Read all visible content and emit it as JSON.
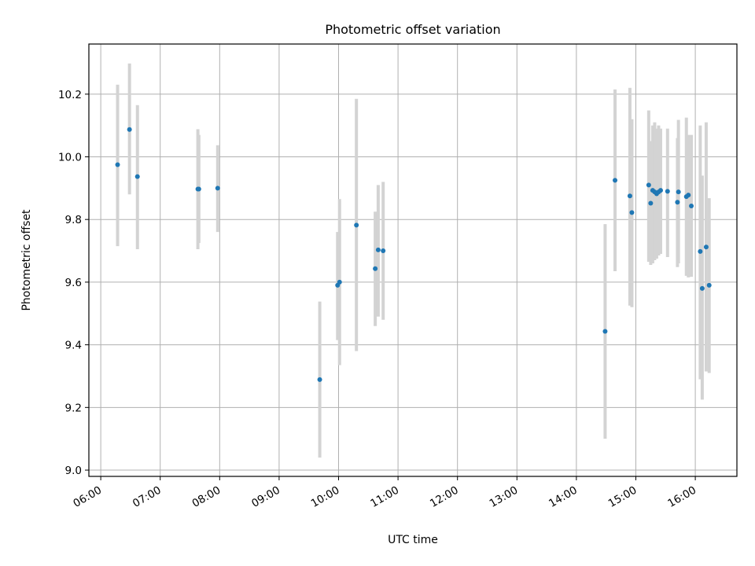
{
  "chart_data": {
    "type": "scatter",
    "title": "Photometric offset variation",
    "xlabel": "UTC time",
    "ylabel": "Photometric offset",
    "xlim": [
      "05:48",
      "16:42"
    ],
    "ylim": [
      8.98,
      10.36
    ],
    "x_ticks": [
      "06:00",
      "07:00",
      "08:00",
      "09:00",
      "10:00",
      "11:00",
      "12:00",
      "13:00",
      "14:00",
      "15:00",
      "16:00"
    ],
    "y_ticks": [
      9.0,
      9.2,
      9.4,
      9.6,
      9.8,
      10.0,
      10.2
    ],
    "grid": true,
    "colors": {
      "points": "#1f77b4",
      "error_bars": "#d3d3d3",
      "grid": "#b0b0b0"
    },
    "series": [
      {
        "points": [
          {
            "x": "06:17",
            "y": 9.975,
            "low": 9.715,
            "high": 10.23
          },
          {
            "x": "06:29",
            "y": 10.087,
            "low": 9.88,
            "high": 10.298
          },
          {
            "x": "06:37",
            "y": 9.937,
            "low": 9.705,
            "high": 10.165
          },
          {
            "x": "07:38",
            "y": 9.897,
            "low": 9.705,
            "high": 10.088
          },
          {
            "x": "07:39",
            "y": 9.897,
            "low": 9.725,
            "high": 10.07
          },
          {
            "x": "07:58",
            "y": 9.9,
            "low": 9.76,
            "high": 10.037
          },
          {
            "x": "09:41",
            "y": 9.289,
            "low": 9.04,
            "high": 9.538
          },
          {
            "x": "09:59",
            "y": 9.59,
            "low": 9.415,
            "high": 9.76
          },
          {
            "x": "10:01",
            "y": 9.6,
            "low": 9.335,
            "high": 9.865
          },
          {
            "x": "10:18",
            "y": 9.782,
            "low": 9.38,
            "high": 10.185
          },
          {
            "x": "10:37",
            "y": 9.643,
            "low": 9.46,
            "high": 9.825
          },
          {
            "x": "10:40",
            "y": 9.703,
            "low": 9.49,
            "high": 9.91
          },
          {
            "x": "10:45",
            "y": 9.7,
            "low": 9.48,
            "high": 9.92
          },
          {
            "x": "14:29",
            "y": 9.443,
            "low": 9.1,
            "high": 9.785
          },
          {
            "x": "14:39",
            "y": 9.925,
            "low": 9.635,
            "high": 10.215
          },
          {
            "x": "14:54",
            "y": 9.875,
            "low": 9.525,
            "high": 10.22
          },
          {
            "x": "14:56",
            "y": 9.822,
            "low": 9.52,
            "high": 10.12
          },
          {
            "x": "15:13",
            "y": 9.91,
            "low": 9.665,
            "high": 10.148
          },
          {
            "x": "15:15",
            "y": 9.852,
            "low": 9.655,
            "high": 10.05
          },
          {
            "x": "15:17",
            "y": 9.893,
            "low": 9.66,
            "high": 10.1
          },
          {
            "x": "15:19",
            "y": 9.888,
            "low": 9.67,
            "high": 10.11
          },
          {
            "x": "15:21",
            "y": 9.882,
            "low": 9.675,
            "high": 10.09
          },
          {
            "x": "15:23",
            "y": 9.888,
            "low": 9.685,
            "high": 10.1
          },
          {
            "x": "15:25",
            "y": 9.893,
            "low": 9.69,
            "high": 10.09
          },
          {
            "x": "15:32",
            "y": 9.89,
            "low": 9.68,
            "high": 10.09
          },
          {
            "x": "15:42",
            "y": 9.855,
            "low": 9.648,
            "high": 10.06
          },
          {
            "x": "15:43",
            "y": 9.888,
            "low": 9.66,
            "high": 10.118
          },
          {
            "x": "15:51",
            "y": 9.873,
            "low": 9.62,
            "high": 10.125
          },
          {
            "x": "15:53",
            "y": 9.878,
            "low": 9.615,
            "high": 10.07
          },
          {
            "x": "15:56",
            "y": 9.843,
            "low": 9.617,
            "high": 10.07
          },
          {
            "x": "16:05",
            "y": 9.698,
            "low": 9.29,
            "high": 10.1
          },
          {
            "x": "16:07",
            "y": 9.58,
            "low": 9.225,
            "high": 9.94
          },
          {
            "x": "16:11",
            "y": 9.712,
            "low": 9.315,
            "high": 10.11
          },
          {
            "x": "16:14",
            "y": 9.59,
            "low": 9.31,
            "high": 9.868
          }
        ]
      }
    ]
  }
}
